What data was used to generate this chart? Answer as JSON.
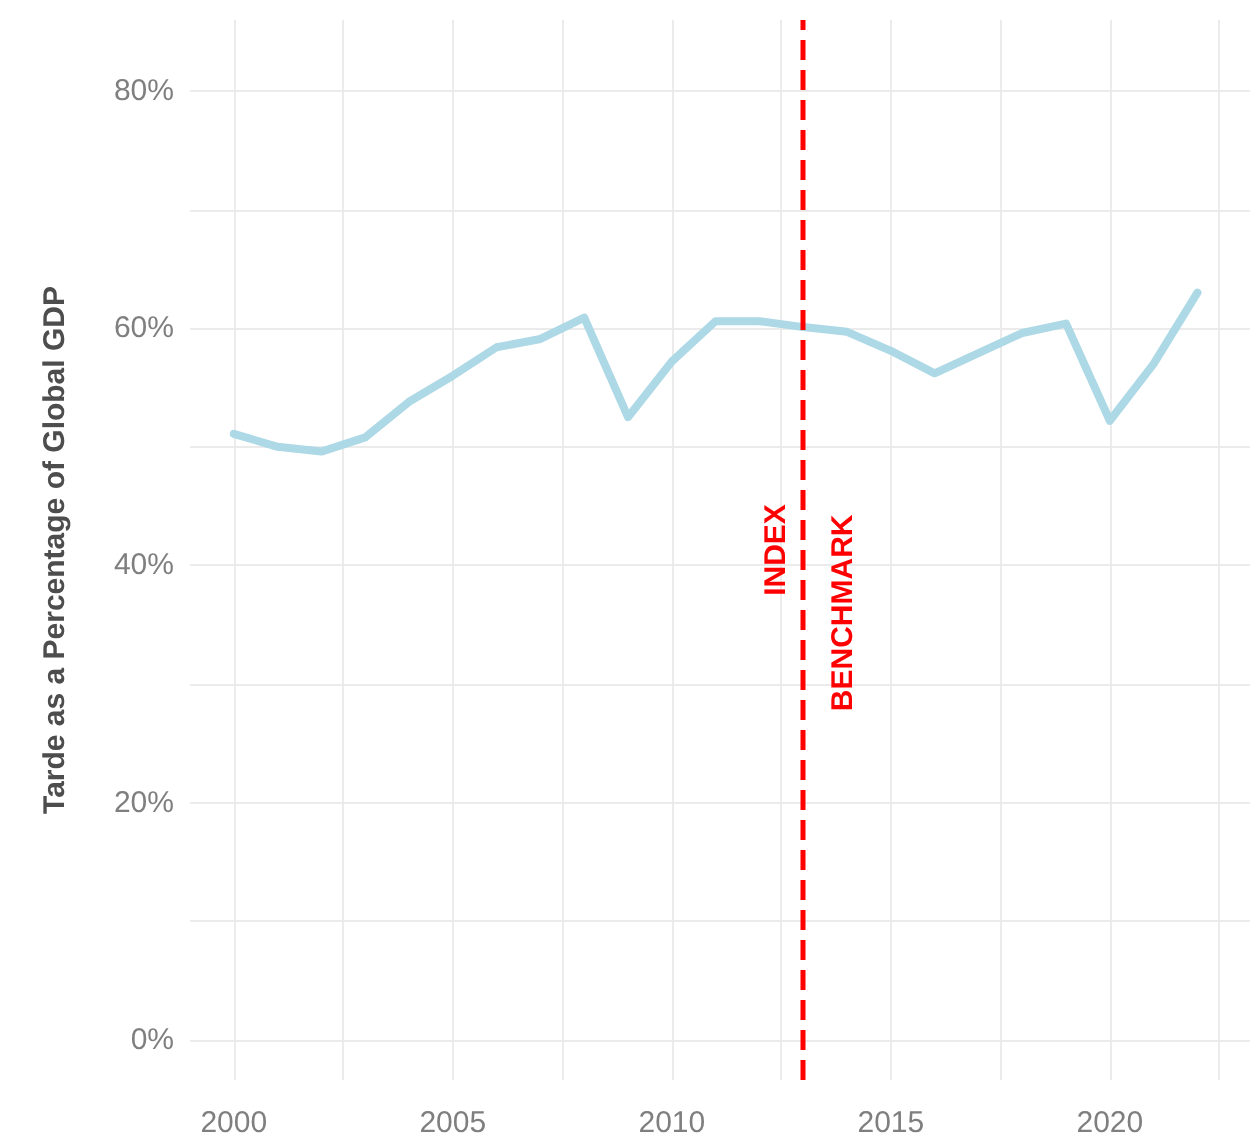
{
  "chart_data": {
    "type": "line",
    "ylabel": "Tarde as a Percentage of Global GDP",
    "x": [
      2000,
      2001,
      2002,
      2003,
      2004,
      2005,
      2006,
      2007,
      2008,
      2009,
      2010,
      2011,
      2012,
      2013,
      2014,
      2015,
      2016,
      2017,
      2018,
      2019,
      2020,
      2021,
      2022
    ],
    "series": [
      {
        "color": "#add8e6",
        "values": [
          51.1,
          50.0,
          49.6,
          50.8,
          53.8,
          56.0,
          58.4,
          59.1,
          60.9,
          52.5,
          57.2,
          60.6,
          60.6,
          60.1,
          59.7,
          58.1,
          56.2,
          57.9,
          59.6,
          60.4,
          52.2,
          57.0,
          63.0
        ]
      }
    ],
    "xlim": [
      1999,
      2023.2
    ],
    "xticks": [
      2000,
      {
        "value": 2002.5,
        "label": null
      },
      2005,
      {
        "value": 2007.5,
        "label": null
      },
      2010,
      {
        "value": 2012.5,
        "label": null
      },
      2015,
      {
        "value": 2017.5,
        "label": null
      },
      2020,
      {
        "value": 2022.5,
        "label": null
      }
    ],
    "ylim": [
      -3.4,
      86
    ],
    "yticks": [
      {
        "value": 0,
        "label": "0%"
      },
      {
        "value": 10,
        "label": null
      },
      {
        "value": 20,
        "label": "20%"
      },
      {
        "value": 30,
        "label": null
      },
      {
        "value": 40,
        "label": "40%"
      },
      {
        "value": 50,
        "label": null
      },
      {
        "value": 60,
        "label": "60%"
      },
      {
        "value": 70,
        "label": null
      },
      {
        "value": 80,
        "label": "80%"
      }
    ],
    "ref_lines": [
      {
        "axis": "x",
        "value": 2013,
        "label": "INDEX",
        "color": "#ff0000",
        "line_style": "dashed"
      }
    ],
    "annotations": [
      {
        "text": "BENCHMARK",
        "x": 2013,
        "y": 36
      }
    ],
    "grid": true,
    "marker": "none",
    "line_style": "solid"
  }
}
